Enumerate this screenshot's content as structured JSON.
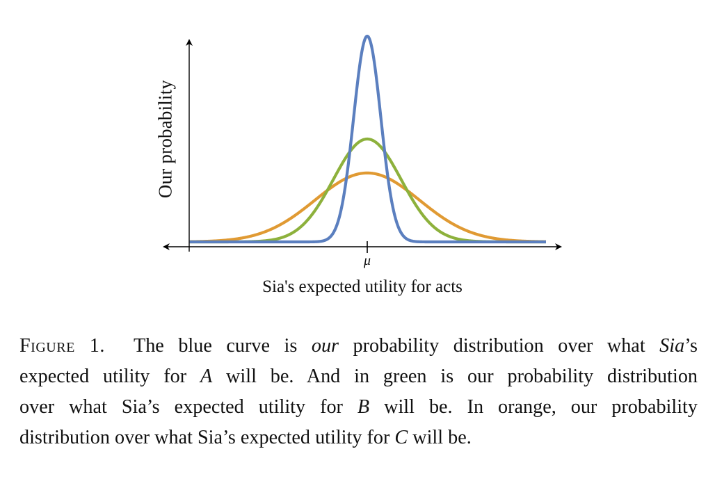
{
  "figure": {
    "ylabel": "Our probability",
    "xlabel": "Sia's expected utility for acts",
    "x_tick_label": "μ"
  },
  "chart_data": {
    "type": "line",
    "title": "",
    "xlabel": "Sia's expected utility for acts",
    "ylabel": "Our probability",
    "x_ticks": [
      "μ"
    ],
    "grid": false,
    "legend": "none (colors described in caption)",
    "axis_ranges": {
      "x": [
        -3.5,
        3.5
      ],
      "y": [
        0,
        1.05
      ]
    },
    "series": [
      {
        "name": "A (blue)",
        "color": "#5b7fbf",
        "distribution": "normal",
        "mean": 0,
        "relative_sd": 1.0,
        "relative_peak_height": 1.0
      },
      {
        "name": "B (green)",
        "color": "#8db13c",
        "distribution": "normal",
        "mean": 0,
        "relative_sd": 2.5,
        "relative_peak_height": 0.5
      },
      {
        "name": "C (orange)",
        "color": "#e09a33",
        "distribution": "normal",
        "mean": 0,
        "relative_sd": 3.85,
        "relative_peak_height": 0.335
      }
    ]
  },
  "caption": {
    "label": "Figure 1.",
    "lines": [
      [
        "The blue curve is ",
        "our",
        " probability distribution over what ",
        "Sia",
        "’s"
      ],
      [
        "expected utility for ",
        "A",
        " will be. And in green is our probability distribution"
      ],
      [
        "over what Sia’s expected utility for ",
        "B",
        " will be. In orange, our probability"
      ],
      [
        "distribution over what Sia’s expected utility for ",
        "C",
        " will be."
      ]
    ]
  }
}
